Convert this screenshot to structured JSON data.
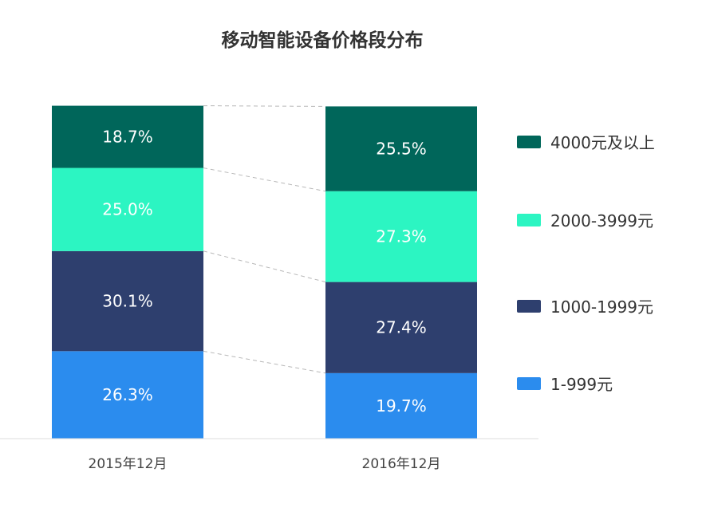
{
  "chart_data": {
    "type": "bar",
    "stacked": true,
    "normalized_percent": true,
    "title": "移动智能设备价格段分布",
    "xlabel": "",
    "ylabel": "",
    "ylim": [
      0,
      100
    ],
    "categories": [
      "2015年12月",
      "2016年12月"
    ],
    "series": [
      {
        "name": "1-999元",
        "values": [
          26.3,
          19.7
        ],
        "labels": [
          "26.3%",
          "19.7%"
        ]
      },
      {
        "name": "1000-1999元",
        "values": [
          30.1,
          27.4
        ],
        "labels": [
          "30.1%",
          "27.4%"
        ]
      },
      {
        "name": "2000-3999元",
        "values": [
          25.0,
          27.3
        ],
        "labels": [
          "25.0%",
          "27.3%"
        ]
      },
      {
        "name": "4000元及以上",
        "values": [
          18.7,
          25.5
        ],
        "labels": [
          "18.7%",
          "25.5%"
        ]
      }
    ],
    "colors": {
      "1-999元": "#2b8cee",
      "1000-1999元": "#2e3f6e",
      "2000-3999元": "#2cf5c2",
      "4000元及以上": "#00665a"
    },
    "legend_order": [
      "4000元及以上",
      "2000-3999元",
      "1000-1999元",
      "1-999元"
    ],
    "legend_position": "right",
    "connector_lines": "dashed",
    "grid": false
  }
}
